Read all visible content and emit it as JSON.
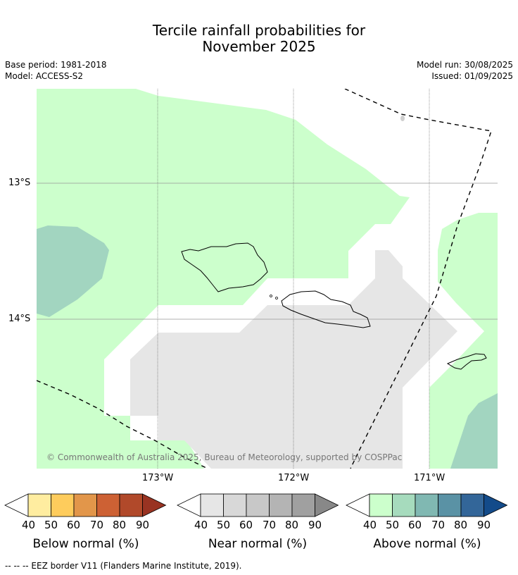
{
  "title_line1": "Tercile rainfall probabilities for",
  "title_line2": "November 2025",
  "base_period": "Base period: 1981-2018",
  "model": "Model: ACCESS-S2",
  "model_run": "Model run: 30/08/2025",
  "issued": "Issued: 01/09/2025",
  "lat_labels": [
    "13°S",
    "14°S"
  ],
  "lon_labels": [
    "173°W",
    "172°W",
    "171°W"
  ],
  "copyright": "© Commonwealth of Australia 2025, Bureau of Meteorology, supported by COSPPac",
  "colorbars": [
    {
      "label": "Below normal (%)",
      "ticks": [
        "40",
        "50",
        "60",
        "70",
        "80",
        "90"
      ],
      "colors": [
        "#ffeda0",
        "#fecc5c",
        "#e2964a",
        "#cd6134",
        "#b1492a",
        "#993322"
      ]
    },
    {
      "label": "Near normal (%)",
      "ticks": [
        "40",
        "50",
        "60",
        "70",
        "80",
        "90"
      ],
      "colors": [
        "#e6e6e6",
        "#d8d8d8",
        "#c8c8c8",
        "#b4b4b4",
        "#a0a0a0",
        "#888888"
      ]
    },
    {
      "label": "Above normal (%)",
      "ticks": [
        "40",
        "50",
        "60",
        "70",
        "80",
        "90"
      ],
      "colors": [
        "#ccffcc",
        "#a6dbbd",
        "#80b8b2",
        "#5a92a5",
        "#336699",
        "#134b8a"
      ]
    }
  ],
  "footnote": "--  --  -- EEZ border V11 (Flanders Marine Institute, 2019)."
}
